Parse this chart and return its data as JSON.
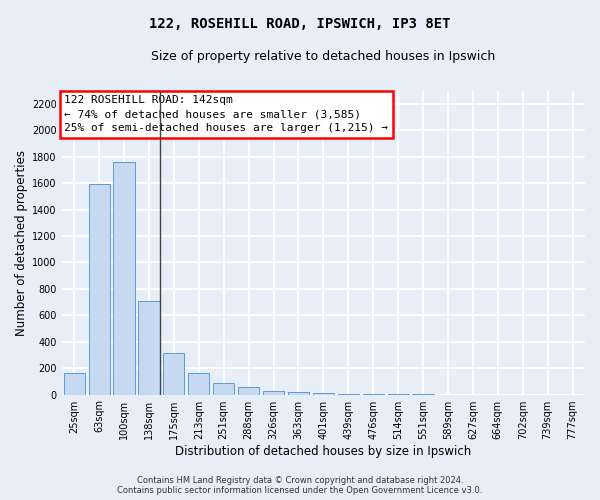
{
  "title": "122, ROSEHILL ROAD, IPSWICH, IP3 8ET",
  "subtitle": "Size of property relative to detached houses in Ipswich",
  "xlabel": "Distribution of detached houses by size in Ipswich",
  "ylabel": "Number of detached properties",
  "footer_line1": "Contains HM Land Registry data © Crown copyright and database right 2024.",
  "footer_line2": "Contains public sector information licensed under the Open Government Licence v3.0.",
  "annotation_line1": "122 ROSEHILL ROAD: 142sqm",
  "annotation_line2": "← 74% of detached houses are smaller (3,585)",
  "annotation_line3": "25% of semi-detached houses are larger (1,215) →",
  "bar_labels": [
    "25sqm",
    "63sqm",
    "100sqm",
    "138sqm",
    "175sqm",
    "213sqm",
    "251sqm",
    "288sqm",
    "326sqm",
    "363sqm",
    "401sqm",
    "439sqm",
    "476sqm",
    "514sqm",
    "551sqm",
    "589sqm",
    "627sqm",
    "664sqm",
    "702sqm",
    "739sqm",
    "777sqm"
  ],
  "bar_values": [
    160,
    1590,
    1760,
    710,
    315,
    160,
    90,
    55,
    30,
    22,
    10,
    3,
    2,
    1,
    1,
    0,
    0,
    0,
    0,
    0,
    0
  ],
  "bar_color": "#c6d9f0",
  "bar_edge_color": "#5b9bd5",
  "vline_index": 3,
  "ylim_max": 2300,
  "yticks": [
    0,
    200,
    400,
    600,
    800,
    1000,
    1200,
    1400,
    1600,
    1800,
    2000,
    2200
  ],
  "bg_color": "#e8eef8",
  "grid_color": "#ffffff",
  "title_fontsize": 10,
  "subtitle_fontsize": 9,
  "ylabel_fontsize": 8.5,
  "xlabel_fontsize": 8.5,
  "tick_fontsize": 7,
  "annotation_fontsize": 8,
  "footer_fontsize": 6
}
